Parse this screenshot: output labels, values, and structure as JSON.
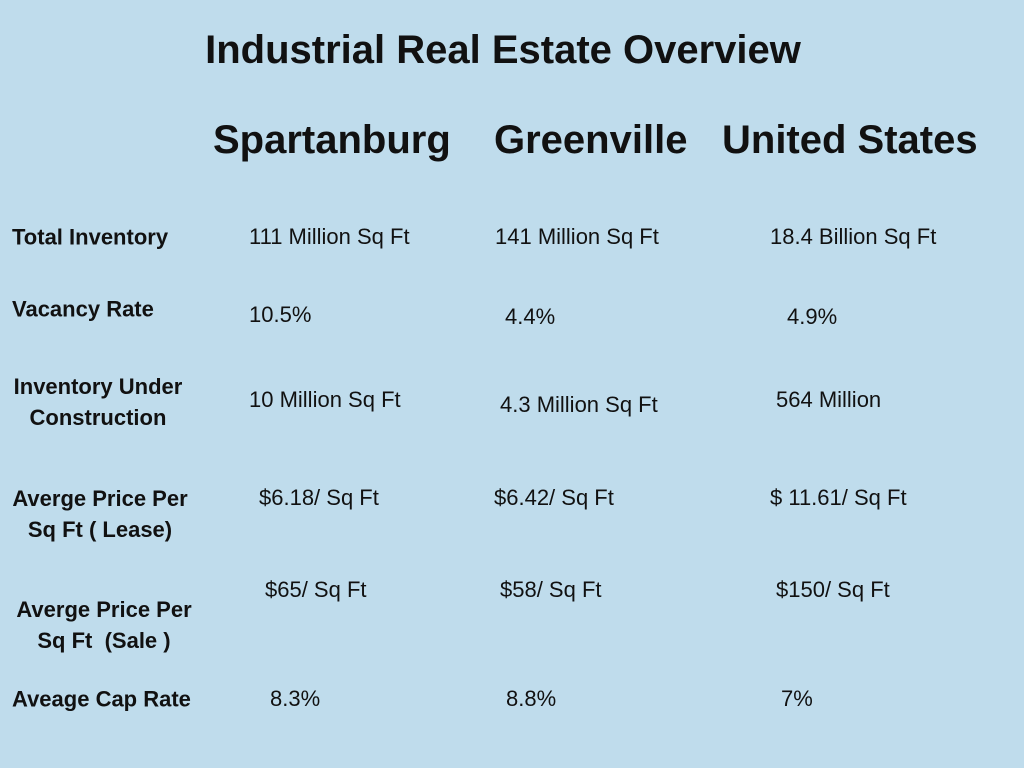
{
  "title": "Industrial Real Estate Overview",
  "columns": [
    "Spartanburg",
    "Greenville",
    "United States"
  ],
  "rows": [
    {
      "label": [
        "Total Inventory"
      ],
      "values": [
        "111 Million Sq Ft",
        "141 Million Sq Ft",
        "18.4 Billion Sq Ft"
      ]
    },
    {
      "label": [
        "Vacancy Rate"
      ],
      "values": [
        "10.5%",
        "4.4%",
        "4.9%"
      ]
    },
    {
      "label": [
        "Inventory Under",
        "Construction"
      ],
      "values": [
        "10 Million Sq Ft",
        "4.3 Million Sq Ft",
        "564 Million"
      ]
    },
    {
      "label": [
        "Averge Price Per",
        "Sq Ft ( Lease)"
      ],
      "values": [
        "$6.18/ Sq Ft",
        "$6.42/ Sq Ft",
        "$ 11.61/ Sq Ft"
      ]
    },
    {
      "label": [
        "Averge Price Per",
        "Sq Ft  (Sale )"
      ],
      "values": [
        "$65/ Sq Ft",
        "$58/ Sq Ft",
        "$150/ Sq Ft"
      ]
    },
    {
      "label": [
        "Aveage Cap Rate"
      ],
      "values": [
        "8.3%",
        "8.8%",
        "7%"
      ]
    }
  ]
}
